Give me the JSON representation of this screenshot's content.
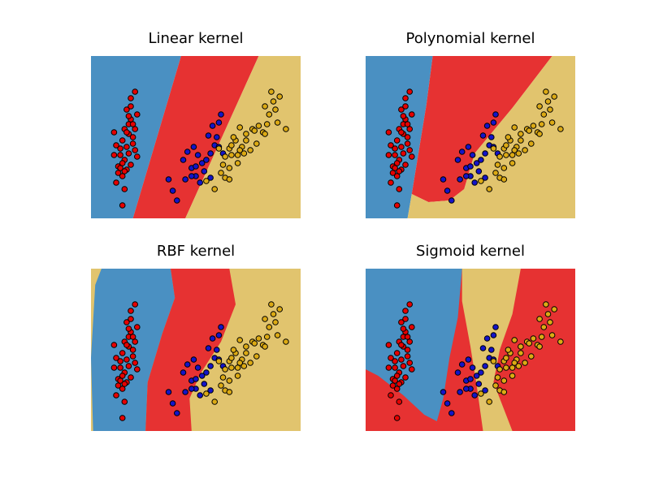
{
  "colors": {
    "region_red": "#e63232",
    "region_blue": "#4a90c2",
    "region_yellow": "#e1c46e",
    "point_red": "#e60000",
    "point_blue": "#1414c8",
    "point_yellow": "#dcaa14",
    "point_edge": "#000000"
  },
  "chart_data": [
    {
      "type": "scatter",
      "title": "Linear kernel",
      "regions": [
        {
          "class": "blue",
          "polygon": [
            [
              0,
              0
            ],
            [
              0.43,
              0
            ],
            [
              0.2,
              1.0
            ],
            [
              0,
              1.0
            ]
          ]
        },
        {
          "class": "red",
          "polygon": [
            [
              0.43,
              0
            ],
            [
              0.8,
              0
            ],
            [
              0.45,
              1.0
            ],
            [
              0.2,
              1.0
            ]
          ]
        },
        {
          "class": "yellow",
          "polygon": [
            [
              0.8,
              0
            ],
            [
              1,
              0
            ],
            [
              1,
              1.0
            ],
            [
              0.45,
              1.0
            ]
          ]
        }
      ]
    },
    {
      "type": "scatter",
      "title": "Polynomial kernel",
      "regions": [
        {
          "class": "blue",
          "polygon": [
            [
              0,
              0
            ],
            [
              0.32,
              0
            ],
            [
              0.29,
              0.3
            ],
            [
              0.22,
              0.85
            ],
            [
              0.2,
              1.0
            ],
            [
              0,
              1.0
            ]
          ]
        },
        {
          "class": "red",
          "polygon": [
            [
              0.32,
              0
            ],
            [
              0.89,
              0
            ],
            [
              0.7,
              0.32
            ],
            [
              0.52,
              0.6
            ],
            [
              0.47,
              0.82
            ],
            [
              0.4,
              0.89
            ],
            [
              0.3,
              0.9
            ],
            [
              0.22,
              0.85
            ],
            [
              0.29,
              0.3
            ]
          ]
        },
        {
          "class": "yellow",
          "polygon": [
            [
              0.89,
              0
            ],
            [
              1,
              0
            ],
            [
              1,
              1.0
            ],
            [
              0.2,
              1.0
            ],
            [
              0.22,
              0.85
            ],
            [
              0.3,
              0.9
            ],
            [
              0.4,
              0.89
            ],
            [
              0.47,
              0.82
            ],
            [
              0.52,
              0.6
            ],
            [
              0.7,
              0.32
            ]
          ]
        }
      ]
    },
    {
      "type": "scatter",
      "title": "RBF kernel",
      "regions": [
        {
          "class": "yellow",
          "polygon": [
            [
              0,
              0
            ],
            [
              1,
              0
            ],
            [
              1,
              1.0
            ],
            [
              0,
              1.0
            ]
          ]
        },
        {
          "class": "blue",
          "polygon": [
            [
              0.05,
              0
            ],
            [
              0.38,
              0
            ],
            [
              0.4,
              0.18
            ],
            [
              0.34,
              0.4
            ],
            [
              0.27,
              0.7
            ],
            [
              0.26,
              1.0
            ],
            [
              0.01,
              1.0
            ],
            [
              0.0,
              0.55
            ],
            [
              0.02,
              0.1
            ]
          ]
        },
        {
          "class": "red",
          "polygon": [
            [
              0.38,
              0
            ],
            [
              0.66,
              0
            ],
            [
              0.69,
              0.22
            ],
            [
              0.62,
              0.45
            ],
            [
              0.52,
              0.65
            ],
            [
              0.47,
              0.8
            ],
            [
              0.48,
              1.0
            ],
            [
              0.26,
              1.0
            ],
            [
              0.27,
              0.7
            ],
            [
              0.34,
              0.4
            ],
            [
              0.4,
              0.18
            ]
          ]
        }
      ]
    },
    {
      "type": "scatter",
      "title": "Sigmoid kernel",
      "regions": [
        {
          "class": "red",
          "polygon": [
            [
              0,
              0
            ],
            [
              1,
              0
            ],
            [
              1,
              1.0
            ],
            [
              0,
              1.0
            ]
          ]
        },
        {
          "class": "blue",
          "polygon": [
            [
              0,
              0
            ],
            [
              0.46,
              0
            ],
            [
              0.44,
              0.3
            ],
            [
              0.4,
              0.55
            ],
            [
              0.37,
              0.8
            ],
            [
              0.34,
              0.94
            ],
            [
              0.28,
              0.9
            ],
            [
              0.18,
              0.78
            ],
            [
              0.06,
              0.66
            ],
            [
              0,
              0.62
            ]
          ]
        },
        {
          "class": "yellow",
          "polygon": [
            [
              0.46,
              0
            ],
            [
              0.74,
              0
            ],
            [
              0.7,
              0.28
            ],
            [
              0.64,
              0.5
            ],
            [
              0.61,
              0.7
            ],
            [
              0.7,
              1.0
            ],
            [
              0.56,
              1.0
            ],
            [
              0.53,
              0.72
            ],
            [
              0.5,
              0.48
            ],
            [
              0.46,
              0.2
            ]
          ]
        }
      ]
    }
  ],
  "points": {
    "red": [
      [
        0.21,
        0.22
      ],
      [
        0.19,
        0.26
      ],
      [
        0.17,
        0.33
      ],
      [
        0.19,
        0.39
      ],
      [
        0.22,
        0.36
      ],
      [
        0.16,
        0.45
      ],
      [
        0.18,
        0.48
      ],
      [
        0.2,
        0.5
      ],
      [
        0.15,
        0.52
      ],
      [
        0.17,
        0.56
      ],
      [
        0.14,
        0.61
      ],
      [
        0.16,
        0.64
      ],
      [
        0.13,
        0.68
      ],
      [
        0.17,
        0.7
      ],
      [
        0.15,
        0.74
      ],
      [
        0.12,
        0.78
      ],
      [
        0.16,
        0.82
      ],
      [
        0.11,
        0.47
      ],
      [
        0.21,
        0.45
      ],
      [
        0.18,
        0.42
      ],
      [
        0.2,
        0.54
      ],
      [
        0.18,
        0.6
      ],
      [
        0.21,
        0.58
      ],
      [
        0.14,
        0.57
      ],
      [
        0.16,
        0.71
      ],
      [
        0.11,
        0.61
      ],
      [
        0.19,
        0.31
      ],
      [
        0.18,
        0.37
      ],
      [
        0.15,
        0.66
      ],
      [
        0.13,
        0.72
      ],
      [
        0.15,
        0.92
      ],
      [
        0.12,
        0.55
      ],
      [
        0.2,
        0.42
      ],
      [
        0.17,
        0.47
      ],
      [
        0.19,
        0.67
      ],
      [
        0.22,
        0.62
      ],
      [
        0.14,
        0.69
      ]
    ],
    "blue": [
      [
        0.37,
        0.76
      ],
      [
        0.39,
        0.83
      ],
      [
        0.41,
        0.89
      ],
      [
        0.44,
        0.64
      ],
      [
        0.46,
        0.59
      ],
      [
        0.49,
        0.56
      ],
      [
        0.51,
        0.61
      ],
      [
        0.48,
        0.69
      ],
      [
        0.5,
        0.74
      ],
      [
        0.53,
        0.66
      ],
      [
        0.55,
        0.64
      ],
      [
        0.57,
        0.6
      ],
      [
        0.59,
        0.55
      ],
      [
        0.56,
        0.49
      ],
      [
        0.58,
        0.43
      ],
      [
        0.61,
        0.41
      ],
      [
        0.62,
        0.36
      ],
      [
        0.6,
        0.5
      ],
      [
        0.54,
        0.71
      ],
      [
        0.52,
        0.78
      ],
      [
        0.57,
        0.75
      ],
      [
        0.45,
        0.76
      ],
      [
        0.63,
        0.6
      ],
      [
        0.61,
        0.56
      ],
      [
        0.5,
        0.68
      ],
      [
        0.48,
        0.74
      ]
    ],
    "yellow": [
      [
        0.69,
        0.52
      ],
      [
        0.72,
        0.56
      ],
      [
        0.74,
        0.48
      ],
      [
        0.77,
        0.45
      ],
      [
        0.8,
        0.43
      ],
      [
        0.82,
        0.47
      ],
      [
        0.84,
        0.42
      ],
      [
        0.79,
        0.54
      ],
      [
        0.76,
        0.58
      ],
      [
        0.73,
        0.6
      ],
      [
        0.7,
        0.66
      ],
      [
        0.66,
        0.69
      ],
      [
        0.67,
        0.61
      ],
      [
        0.64,
        0.75
      ],
      [
        0.63,
        0.67
      ],
      [
        0.71,
        0.44
      ],
      [
        0.85,
        0.36
      ],
      [
        0.88,
        0.33
      ],
      [
        0.83,
        0.31
      ],
      [
        0.89,
        0.41
      ],
      [
        0.93,
        0.45
      ],
      [
        0.87,
        0.28
      ],
      [
        0.86,
        0.22
      ],
      [
        0.9,
        0.25
      ],
      [
        0.66,
        0.76
      ],
      [
        0.62,
        0.72
      ],
      [
        0.61,
        0.57
      ],
      [
        0.68,
        0.5
      ],
      [
        0.71,
        0.58
      ],
      [
        0.74,
        0.52
      ],
      [
        0.55,
        0.77
      ],
      [
        0.59,
        0.82
      ],
      [
        0.66,
        0.57
      ],
      [
        0.78,
        0.46
      ],
      [
        0.83,
        0.48
      ],
      [
        0.7,
        0.61
      ],
      [
        0.64,
        0.62
      ],
      [
        0.67,
        0.55
      ]
    ]
  }
}
